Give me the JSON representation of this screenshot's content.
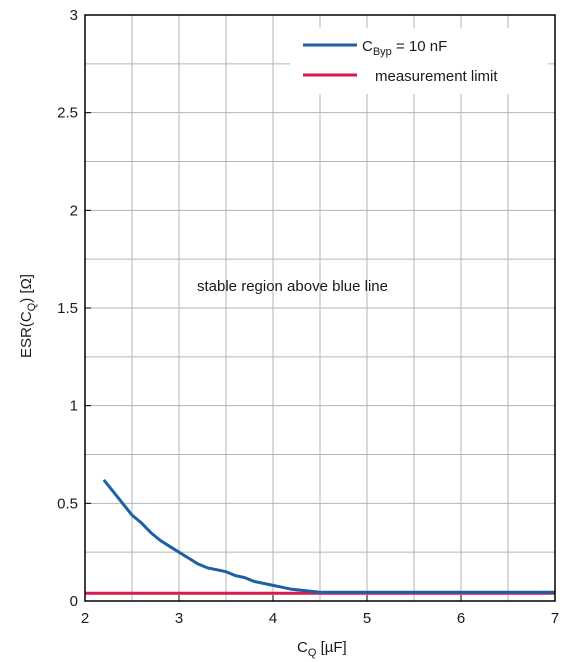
{
  "chart_data": {
    "type": "line",
    "xlabel": {
      "main": "C",
      "sub": "Q",
      "rest": " [µF]"
    },
    "ylabel": {
      "main": "ESR(C",
      "sub": "Q",
      "rest": ") [Ω]"
    },
    "xlim": [
      2,
      7
    ],
    "ylim": [
      0,
      3
    ],
    "x_ticks": [
      "2",
      "3",
      "4",
      "5",
      "6",
      "7"
    ],
    "y_ticks": [
      "0",
      "0.5",
      "1",
      "1.5",
      "2",
      "2.5",
      "3"
    ],
    "grid": true,
    "legend_position": "top-right",
    "annotation": "stable region above blue line",
    "series": [
      {
        "name": {
          "main": "C",
          "sub": "Byp",
          "rest": " = 10 nF"
        },
        "color": "#1f5fa3",
        "x": [
          2.2,
          2.3,
          2.4,
          2.5,
          2.6,
          2.7,
          2.8,
          2.9,
          3.0,
          3.1,
          3.2,
          3.3,
          3.4,
          3.5,
          3.6,
          3.7,
          3.8,
          3.9,
          4.0,
          4.1,
          4.2,
          4.3,
          4.4,
          4.5,
          4.6,
          5.0,
          6.0,
          7.0
        ],
        "y": [
          0.62,
          0.56,
          0.5,
          0.44,
          0.4,
          0.35,
          0.31,
          0.28,
          0.25,
          0.22,
          0.19,
          0.17,
          0.16,
          0.15,
          0.13,
          0.12,
          0.1,
          0.09,
          0.08,
          0.07,
          0.06,
          0.055,
          0.05,
          0.045,
          0.045,
          0.045,
          0.045,
          0.045
        ]
      },
      {
        "name": {
          "main": "",
          "sub": "",
          "rest": "measurement limit"
        },
        "color": "#d81b4f",
        "x": [
          2,
          7
        ],
        "y": [
          0.04,
          0.04
        ]
      }
    ]
  }
}
